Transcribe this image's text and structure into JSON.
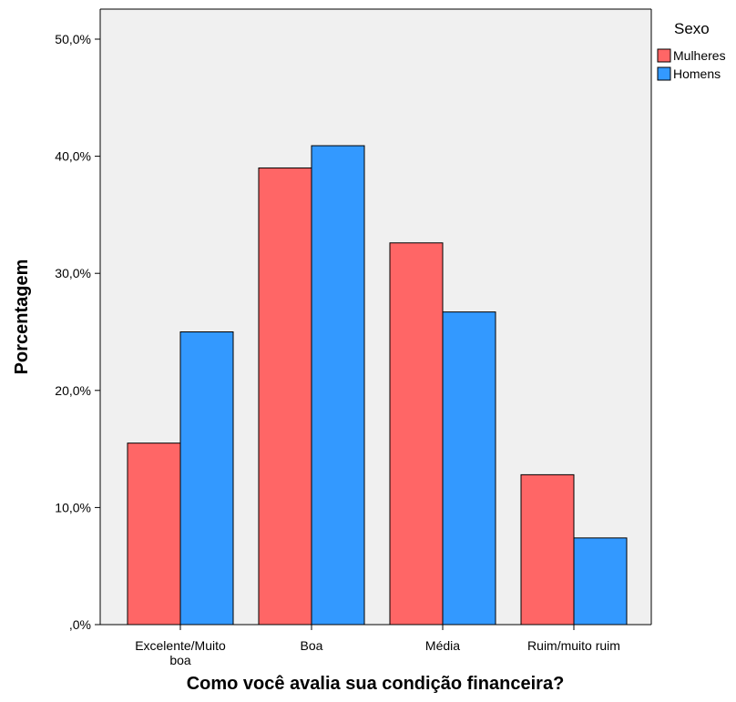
{
  "chart_data": {
    "type": "bar",
    "categories": [
      [
        "Excelente/Muito",
        "boa"
      ],
      [
        "Boa"
      ],
      [
        "Média"
      ],
      [
        "Ruim/muito ruim"
      ]
    ],
    "series": [
      {
        "name": "Mulheres",
        "color": "#ff6666",
        "values": [
          15.5,
          39.0,
          32.6,
          12.8
        ]
      },
      {
        "name": "Homens",
        "color": "#3399ff",
        "values": [
          25.0,
          40.9,
          26.7,
          7.4
        ]
      }
    ],
    "xlabel": "Como você avalia sua condição financeira?",
    "ylabel": "Porcentagem",
    "ylim": [
      0,
      52
    ],
    "yticks": [
      {
        "value": 0,
        "label": ",0%"
      },
      {
        "value": 10,
        "label": "10,0%"
      },
      {
        "value": 20,
        "label": "20,0%"
      },
      {
        "value": 30,
        "label": "30,0%"
      },
      {
        "value": 40,
        "label": "40,0%"
      },
      {
        "value": 50,
        "label": "50,0%"
      }
    ],
    "legend": {
      "title": "Sexo",
      "placement": "top-right"
    },
    "plot_background": "#f0f0f0",
    "grid": false
  }
}
